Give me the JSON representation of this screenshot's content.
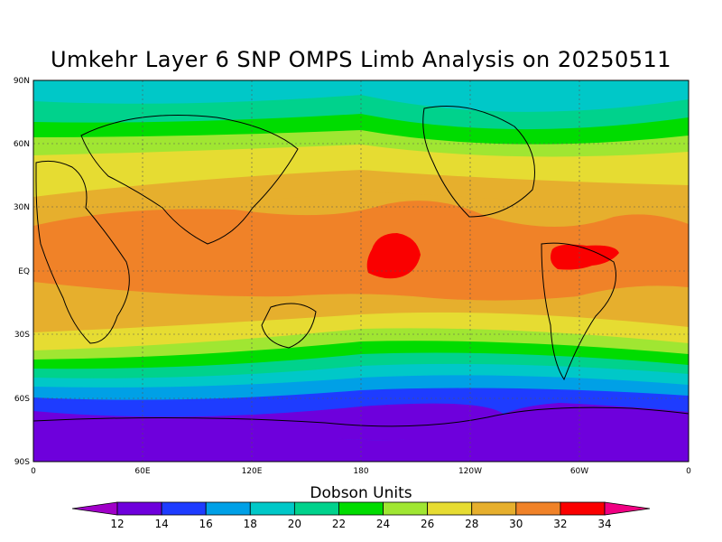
{
  "title": "Umkehr Layer 6 SNP OMPS Limb Analysis on 20250511",
  "colorbar": {
    "label": "Dobson Units",
    "ticks": [
      "12",
      "14",
      "16",
      "18",
      "20",
      "22",
      "24",
      "26",
      "28",
      "30",
      "32",
      "34"
    ],
    "colors": [
      "#a000c8",
      "#6e00dc",
      "#1e3cff",
      "#00a0e6",
      "#00c8c8",
      "#00d28c",
      "#00dc00",
      "#a0e632",
      "#e6dc32",
      "#e6af2d",
      "#f08228",
      "#fa0000",
      "#f00082"
    ]
  },
  "axes": {
    "lat_labels": [
      "90N",
      "60N",
      "30N",
      "EQ",
      "30S",
      "60S",
      "90S"
    ],
    "lon_labels": [
      "0",
      "60E",
      "120E",
      "180",
      "120W",
      "60W",
      "0"
    ]
  },
  "map_data": {
    "type": "global ozone contour map",
    "quantity": "Umkehr layer 6 ozone",
    "units": "Dobson Units",
    "date": "20250511",
    "features": [
      {
        "name": "central pacific maximum",
        "level": ">32"
      },
      {
        "name": "northern south america maximum",
        "level": ">32"
      },
      {
        "name": "antarctic minimum",
        "level": "<14"
      }
    ]
  }
}
